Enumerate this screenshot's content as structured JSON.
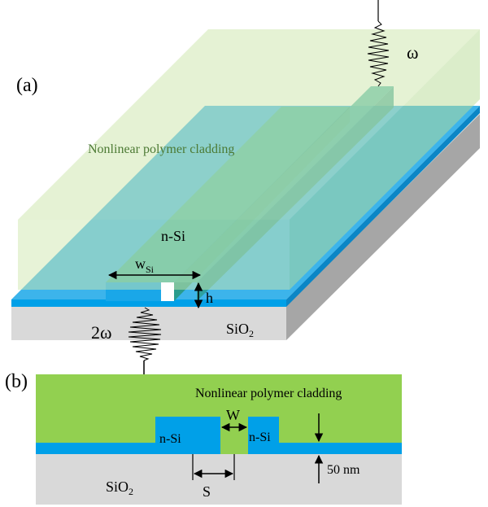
{
  "panel_a": {
    "label": "(a)",
    "cladding_label": "Nonlinear polymer cladding",
    "nsi_label": "n-Si",
    "width_label_main": "w",
    "width_label_sub": "Si",
    "height_label": "h",
    "substrate_label_main": "SiO",
    "substrate_label_sub": "2",
    "input_freq_label": "ω",
    "output_freq_label": "2ω"
  },
  "panel_b": {
    "label": "(b)",
    "cladding_label": "Nonlinear polymer cladding",
    "nsi_left_label": "n-Si",
    "nsi_right_label": "n-Si",
    "gap_label": "W",
    "spacing_label": "S",
    "thickness_label": "50 nm",
    "substrate_label_main": "SiO",
    "substrate_label_sub": "2"
  },
  "colors": {
    "cladding_a": "#cfe8b0",
    "cladding_b": "#92d050",
    "silicon": "#1aa7e8",
    "silicon_top": "#43c0ec",
    "ridge": "#3fb2a0",
    "substrate": "#d9d9d9",
    "substrate_dark": "#a9a9a9"
  }
}
